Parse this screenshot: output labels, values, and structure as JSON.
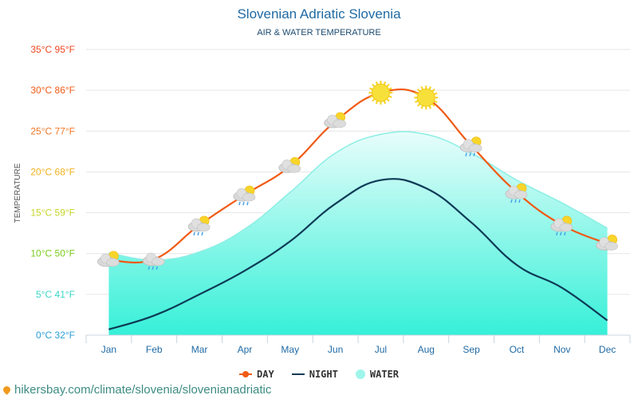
{
  "header": {
    "title": "Slovenian Adriatic Slovenia",
    "subtitle": "AIR & WATER TEMPERATURE"
  },
  "legend": {
    "day": "DAY",
    "night": "NIGHT",
    "water": "WATER"
  },
  "footer": {
    "icon": "location-pin-icon",
    "link": "hikersbay.com/climate/slovenia/slovenianadriatic"
  },
  "colors": {
    "day": "#f05a14",
    "night": "#0d3b56",
    "water_top": "#e8fdfb",
    "water_bottom": "#36f0d8",
    "water_edge": "#8ceee4"
  },
  "chart_data": {
    "type": "line",
    "title": "Slovenian Adriatic Slovenia",
    "subtitle": "AIR & WATER TEMPERATURE",
    "xlabel": "",
    "ylabel": "TEMPERATURE",
    "categories": [
      "Jan",
      "Feb",
      "Mar",
      "Apr",
      "May",
      "Jun",
      "Jul",
      "Aug",
      "Sep",
      "Oct",
      "Nov",
      "Dec"
    ],
    "ylim": [
      0,
      35
    ],
    "yticks": [
      {
        "c": 0,
        "label": "0°C 32°F",
        "color": "#2a9fd6"
      },
      {
        "c": 5,
        "label": "5°C 41°F",
        "color": "#3ad6c8"
      },
      {
        "c": 10,
        "label": "10°C 50°F",
        "color": "#7ccc1e"
      },
      {
        "c": 15,
        "label": "15°C 59°F",
        "color": "#c5d62a"
      },
      {
        "c": 20,
        "label": "20°C 68°F",
        "color": "#f0b21e"
      },
      {
        "c": 25,
        "label": "25°C 77°F",
        "color": "#f07828"
      },
      {
        "c": 30,
        "label": "30°C 86°F",
        "color": "#f05a14"
      },
      {
        "c": 35,
        "label": "35°C 95°F",
        "color": "#f0461e"
      }
    ],
    "grid": true,
    "legend_position": "bottom-center",
    "series": [
      {
        "name": "DAY",
        "values": [
          9.2,
          9.3,
          13.5,
          17.2,
          20.7,
          26.2,
          29.7,
          29.1,
          23.2,
          17.5,
          13.5,
          11.2
        ]
      },
      {
        "name": "NIGHT",
        "values": [
          0.7,
          2.4,
          5.0,
          7.9,
          11.5,
          16.1,
          19.0,
          18.0,
          13.8,
          8.6,
          5.8,
          1.8
        ]
      },
      {
        "name": "WATER",
        "values": [
          10.1,
          9.2,
          10.2,
          13.0,
          17.5,
          22.3,
          24.6,
          24.6,
          22.3,
          19.0,
          16.2,
          13.1
        ]
      }
    ],
    "weather_icons": [
      "partly-cloudy-icon",
      "rain-cloud-icon",
      "partly-cloudy-rain-icon",
      "partly-cloudy-rain-icon",
      "partly-cloudy-icon",
      "partly-cloudy-icon",
      "sun-icon",
      "sun-icon",
      "partly-cloudy-rain-icon",
      "partly-cloudy-rain-icon",
      "partly-cloudy-rain-icon",
      "partly-cloudy-icon"
    ]
  }
}
